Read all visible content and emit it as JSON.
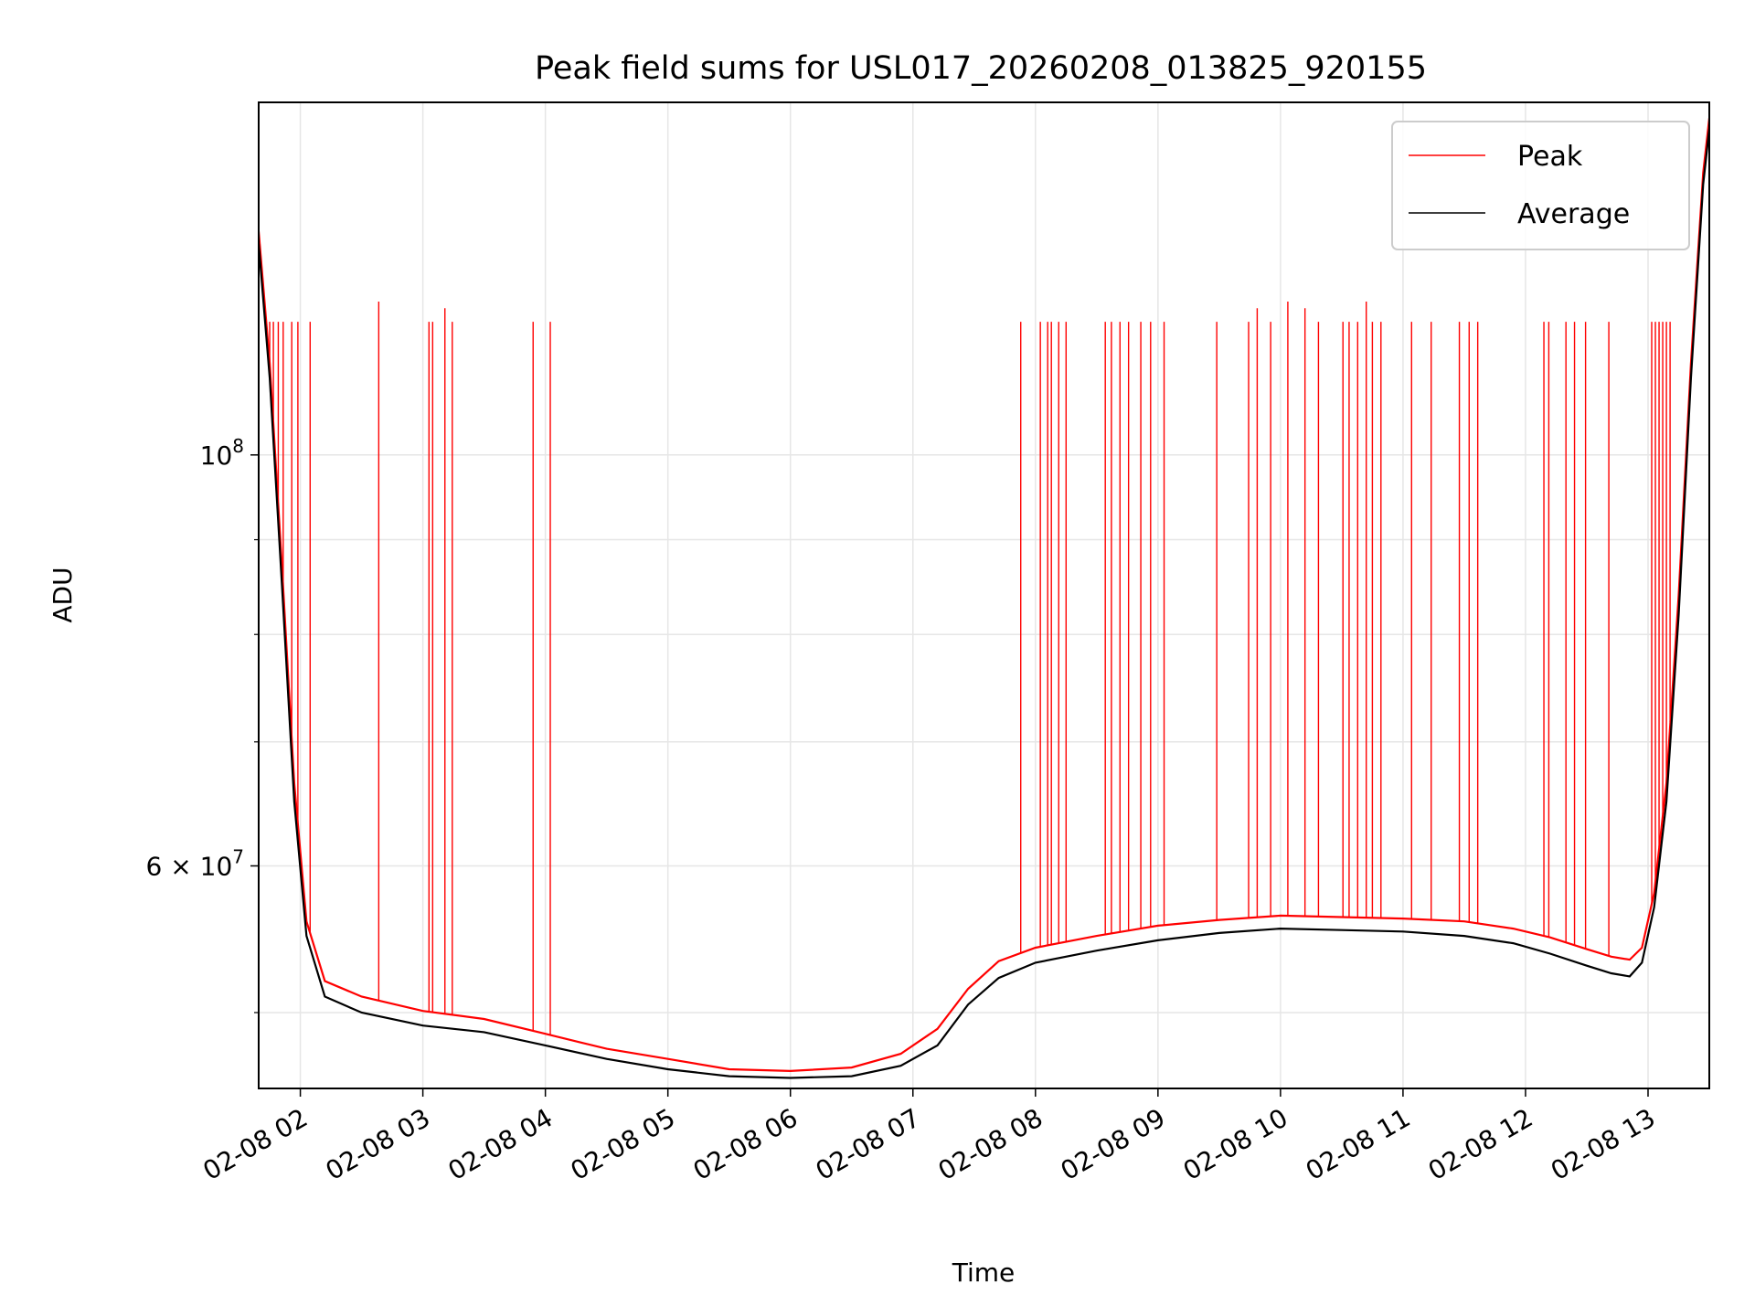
{
  "chart_data": {
    "type": "line",
    "title": "Peak field sums for USL017_20260208_013825_920155",
    "xlabel": "Time",
    "ylabel": "ADU",
    "yscale": "log",
    "xlim": [
      1.66,
      13.5
    ],
    "ylim": [
      45500000,
      155000000
    ],
    "grid": true,
    "legend_position": "top-right",
    "x_ticks": [
      {
        "value": 2,
        "label": "02-08 02"
      },
      {
        "value": 3,
        "label": "02-08 03"
      },
      {
        "value": 4,
        "label": "02-08 04"
      },
      {
        "value": 5,
        "label": "02-08 05"
      },
      {
        "value": 6,
        "label": "02-08 06"
      },
      {
        "value": 7,
        "label": "02-08 07"
      },
      {
        "value": 8,
        "label": "02-08 08"
      },
      {
        "value": 9,
        "label": "02-08 09"
      },
      {
        "value": 10,
        "label": "02-08 10"
      },
      {
        "value": 11,
        "label": "02-08 11"
      },
      {
        "value": 12,
        "label": "02-08 12"
      },
      {
        "value": 13,
        "label": "02-08 13"
      }
    ],
    "y_major_ticks": [
      {
        "value": 60000000,
        "base": "6",
        "sep": "×",
        "mantissa": "10",
        "exponent": "7"
      },
      {
        "value": 100000000,
        "base": "",
        "sep": "",
        "mantissa": "10",
        "exponent": "8"
      }
    ],
    "y_minor_ticks": [
      50000000,
      70000000,
      80000000,
      90000000
    ],
    "series": [
      {
        "name": "Average",
        "color": "#000000",
        "x": [
          1.66,
          1.75,
          1.85,
          1.95,
          2.05,
          2.2,
          2.5,
          3.0,
          3.5,
          4.0,
          4.5,
          5.0,
          5.5,
          6.0,
          6.5,
          6.9,
          7.2,
          7.45,
          7.7,
          8.0,
          8.5,
          9.0,
          9.5,
          10.0,
          10.5,
          11.0,
          11.5,
          11.9,
          12.2,
          12.5,
          12.7,
          12.85,
          12.95,
          13.05,
          13.15,
          13.25,
          13.35,
          13.45,
          13.5
        ],
        "values": [
          130000000,
          110000000,
          85000000,
          65000000,
          55000000,
          51000000,
          50000000,
          49200000,
          48800000,
          48000000,
          47200000,
          46600000,
          46200000,
          46100000,
          46200000,
          46800000,
          48000000,
          50500000,
          52200000,
          53200000,
          54000000,
          54700000,
          55200000,
          55500000,
          55400000,
          55300000,
          55000000,
          54500000,
          53800000,
          53000000,
          52500000,
          52300000,
          53200000,
          57000000,
          65000000,
          82000000,
          110000000,
          140000000,
          150000000
        ]
      },
      {
        "name": "Peak",
        "color": "#ff0000",
        "x": [
          1.66,
          1.75,
          1.85,
          1.95,
          2.05,
          2.2,
          2.5,
          3.0,
          3.5,
          4.0,
          4.5,
          5.0,
          5.5,
          6.0,
          6.5,
          6.9,
          7.2,
          7.45,
          7.7,
          8.0,
          8.5,
          9.0,
          9.5,
          10.0,
          10.5,
          11.0,
          11.5,
          11.9,
          12.2,
          12.5,
          12.7,
          12.85,
          12.95,
          13.05,
          13.15,
          13.25,
          13.35,
          13.45,
          13.5
        ],
        "values": [
          132000000,
          112000000,
          87000000,
          66500000,
          56000000,
          52000000,
          51000000,
          50100000,
          49600000,
          48700000,
          47800000,
          47200000,
          46600000,
          46500000,
          46700000,
          47500000,
          49000000,
          51500000,
          53300000,
          54200000,
          55000000,
          55700000,
          56100000,
          56400000,
          56300000,
          56200000,
          56000000,
          55500000,
          54900000,
          54100000,
          53600000,
          53400000,
          54200000,
          58000000,
          66500000,
          84000000,
          112000000,
          142000000,
          152000000
        ],
        "spikes": [
          {
            "x": 1.72,
            "value": 118000000
          },
          {
            "x": 1.75,
            "value": 118000000
          },
          {
            "x": 1.78,
            "value": 118000000
          },
          {
            "x": 1.82,
            "value": 118000000
          },
          {
            "x": 1.86,
            "value": 118000000
          },
          {
            "x": 1.93,
            "value": 118000000
          },
          {
            "x": 1.98,
            "value": 118000000
          },
          {
            "x": 2.08,
            "value": 118000000
          },
          {
            "x": 2.64,
            "value": 121000000
          },
          {
            "x": 3.05,
            "value": 118000000
          },
          {
            "x": 3.08,
            "value": 118000000
          },
          {
            "x": 3.18,
            "value": 120000000
          },
          {
            "x": 3.24,
            "value": 118000000
          },
          {
            "x": 3.9,
            "value": 118000000
          },
          {
            "x": 4.04,
            "value": 118000000
          },
          {
            "x": 7.88,
            "value": 118000000
          },
          {
            "x": 8.04,
            "value": 118000000
          },
          {
            "x": 8.1,
            "value": 118000000
          },
          {
            "x": 8.13,
            "value": 118000000
          },
          {
            "x": 8.19,
            "value": 118000000
          },
          {
            "x": 8.25,
            "value": 118000000
          },
          {
            "x": 8.57,
            "value": 118000000
          },
          {
            "x": 8.62,
            "value": 118000000
          },
          {
            "x": 8.69,
            "value": 118000000
          },
          {
            "x": 8.76,
            "value": 118000000
          },
          {
            "x": 8.86,
            "value": 118000000
          },
          {
            "x": 8.94,
            "value": 118000000
          },
          {
            "x": 9.05,
            "value": 118000000
          },
          {
            "x": 9.48,
            "value": 118000000
          },
          {
            "x": 9.74,
            "value": 118000000
          },
          {
            "x": 9.81,
            "value": 120000000
          },
          {
            "x": 9.92,
            "value": 118000000
          },
          {
            "x": 10.06,
            "value": 121000000
          },
          {
            "x": 10.2,
            "value": 120000000
          },
          {
            "x": 10.31,
            "value": 118000000
          },
          {
            "x": 10.51,
            "value": 118000000
          },
          {
            "x": 10.56,
            "value": 118000000
          },
          {
            "x": 10.63,
            "value": 118000000
          },
          {
            "x": 10.7,
            "value": 121000000
          },
          {
            "x": 10.75,
            "value": 118000000
          },
          {
            "x": 10.82,
            "value": 118000000
          },
          {
            "x": 11.07,
            "value": 118000000
          },
          {
            "x": 11.23,
            "value": 118000000
          },
          {
            "x": 11.46,
            "value": 118000000
          },
          {
            "x": 11.54,
            "value": 118000000
          },
          {
            "x": 11.61,
            "value": 118000000
          },
          {
            "x": 12.15,
            "value": 118000000
          },
          {
            "x": 12.19,
            "value": 118000000
          },
          {
            "x": 12.33,
            "value": 118000000
          },
          {
            "x": 12.4,
            "value": 118000000
          },
          {
            "x": 12.49,
            "value": 118000000
          },
          {
            "x": 12.68,
            "value": 118000000
          },
          {
            "x": 13.03,
            "value": 118000000
          },
          {
            "x": 13.06,
            "value": 118000000
          },
          {
            "x": 13.09,
            "value": 118000000
          },
          {
            "x": 13.12,
            "value": 118000000
          },
          {
            "x": 13.15,
            "value": 118000000
          },
          {
            "x": 13.18,
            "value": 118000000
          }
        ]
      }
    ],
    "legend": [
      {
        "label": "Peak",
        "color": "#ff0000"
      },
      {
        "label": "Average",
        "color": "#000000"
      }
    ]
  }
}
